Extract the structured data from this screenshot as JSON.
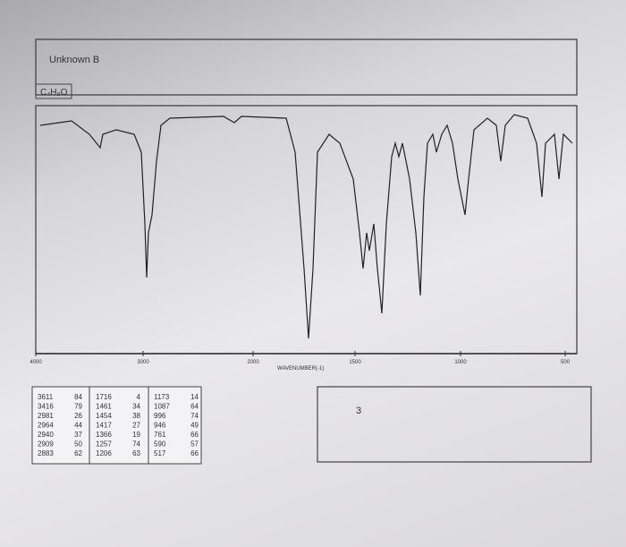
{
  "header": {
    "title": "Unknown B",
    "formula": "C₄H₈O"
  },
  "spectrum": {
    "x_labels": [
      "4000",
      "3000",
      "2000",
      "1500",
      "1000",
      "500"
    ],
    "x_axis_title": "WAVENUMBER(-1)"
  },
  "peak_table": {
    "columns": [
      [
        [
          "3611",
          "84"
        ],
        [
          "3416",
          "79"
        ],
        [
          "2981",
          "26"
        ],
        [
          "2964",
          "44"
        ],
        [
          "2940",
          "37"
        ],
        [
          "2909",
          "50"
        ],
        [
          "2883",
          "62"
        ]
      ],
      [
        [
          "1716",
          "4"
        ],
        [
          "1461",
          "34"
        ],
        [
          "1454",
          "38"
        ],
        [
          "1417",
          "27"
        ],
        [
          "1366",
          "19"
        ],
        [
          "1257",
          "74"
        ],
        [
          "1206",
          "63"
        ]
      ],
      [
        [
          "1173",
          "14"
        ],
        [
          "1087",
          "64"
        ],
        [
          "996",
          "74"
        ],
        [
          "946",
          "49"
        ],
        [
          "761",
          "66"
        ],
        [
          "590",
          "57"
        ],
        [
          "517",
          "66"
        ]
      ]
    ]
  },
  "answer": {
    "text": "3"
  }
}
